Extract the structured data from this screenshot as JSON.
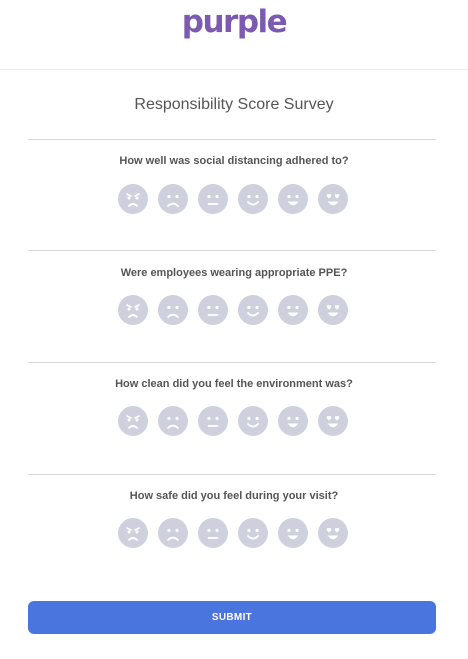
{
  "header": {
    "logo_text": "purple"
  },
  "survey": {
    "title": "Responsibility Score Survey",
    "questions": [
      {
        "text": "How well was social distancing adhered to?"
      },
      {
        "text": "Were employees wearing appropriate PPE?"
      },
      {
        "text": "How clean did you feel the environment was?"
      },
      {
        "text": "How safe did you feel during your visit?"
      }
    ],
    "rating_icons": [
      "angry-face-icon",
      "sad-face-icon",
      "neutral-face-icon",
      "smile-face-icon",
      "happy-face-icon",
      "heart-eyes-face-icon"
    ]
  },
  "actions": {
    "submit_label": "SUBMIT"
  },
  "colors": {
    "brand": "#7b5ab0",
    "accent": "#4a74de",
    "face": "#cfd0dd"
  }
}
